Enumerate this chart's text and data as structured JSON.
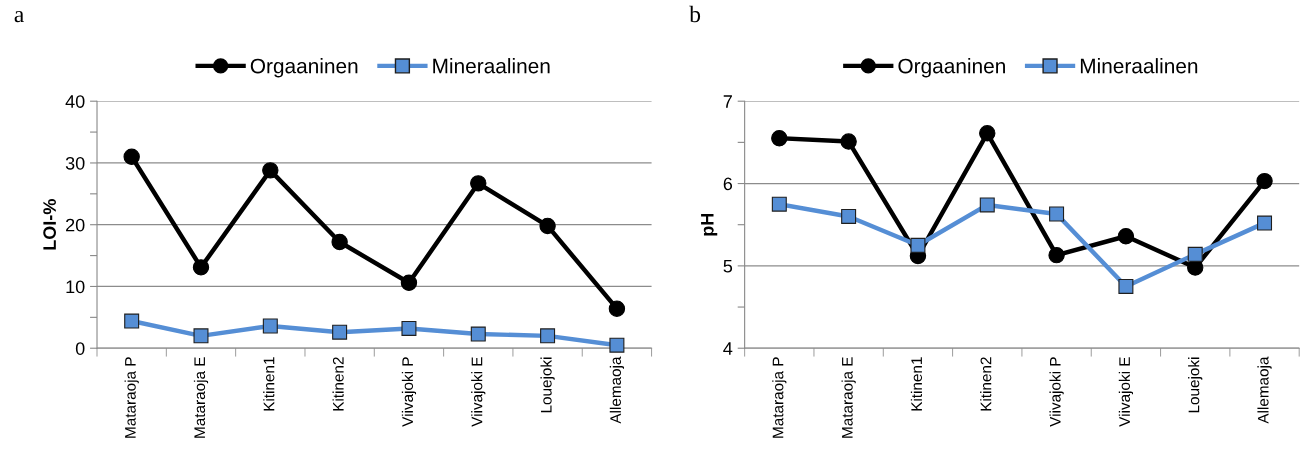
{
  "chart_data": [
    {
      "type": "line",
      "title": "a",
      "ylabel": "LOI-%",
      "categories": [
        "Mataraoja P",
        "Mataraoja E",
        "Kitinen1",
        "Kitinen2",
        "Viivajoki P",
        "Viivajoki E",
        "Louejoki",
        "Allemaoja"
      ],
      "series": [
        {
          "name": "Orgaaninen",
          "color": "#000000",
          "marker": "circle",
          "values": [
            31.0,
            13.1,
            28.8,
            17.2,
            10.6,
            26.7,
            19.8,
            6.4
          ]
        },
        {
          "name": "Mineraalinen",
          "color": "#558ed5",
          "marker": "square",
          "values": [
            4.4,
            2.0,
            3.6,
            2.6,
            3.2,
            2.3,
            2.0,
            0.5
          ]
        }
      ],
      "ylim": [
        0,
        40
      ],
      "yticks": [
        0,
        {
          "value": 5,
          "label": null
        },
        10,
        {
          "value": 15,
          "label": null
        },
        20,
        {
          "value": 25,
          "label": null
        },
        30,
        {
          "value": 35,
          "label": null
        },
        40
      ],
      "grid": "y",
      "legend": "top",
      "line_style": "solid"
    },
    {
      "type": "line",
      "title": "b",
      "ylabel": "pH",
      "categories": [
        "Mataraoja P",
        "Mataraoja E",
        "Kitinen1",
        "Kitinen2",
        "Viivajoki P",
        "Viivajoki E",
        "Louejoki",
        "Allemaoja"
      ],
      "series": [
        {
          "name": "Orgaaninen",
          "color": "#000000",
          "marker": "circle",
          "values": [
            6.55,
            6.51,
            5.12,
            6.61,
            5.13,
            5.36,
            4.98,
            6.03
          ]
        },
        {
          "name": "Mineraalinen",
          "color": "#558ed5",
          "marker": "square",
          "values": [
            5.75,
            5.6,
            5.25,
            5.74,
            5.63,
            4.75,
            5.14,
            5.52
          ]
        }
      ],
      "ylim": [
        4,
        7
      ],
      "yticks": [
        4,
        {
          "value": 4.5,
          "label": null
        },
        5,
        {
          "value": 5.5,
          "label": null
        },
        6,
        {
          "value": 6.5,
          "label": null
        },
        7
      ],
      "grid": "y",
      "legend": "top",
      "line_style": "solid"
    }
  ]
}
